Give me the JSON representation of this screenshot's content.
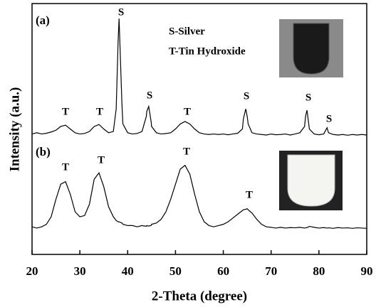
{
  "chart_data": {
    "type": "line",
    "xlabel": "2-Theta (degree)",
    "ylabel": "Intensity (a.u.)",
    "xlim": [
      20,
      90
    ],
    "xticks": [
      20,
      30,
      40,
      50,
      60,
      70,
      80,
      90
    ],
    "ylim": [
      0,
      100
    ],
    "x": [
      20,
      21,
      22,
      23,
      24,
      25,
      26,
      27,
      28,
      29,
      30,
      31,
      32,
      33,
      34,
      35,
      36,
      37,
      37.6,
      38,
      38.2,
      38.8,
      39,
      40,
      41,
      42,
      43,
      43.9,
      44,
      44.4,
      44.9,
      45,
      46,
      47,
      48,
      49,
      50,
      51,
      52,
      53,
      54,
      55,
      56,
      57,
      58,
      59,
      60,
      61,
      62,
      63,
      64,
      64.2,
      64.7,
      65,
      65.2,
      66,
      67,
      68,
      69,
      70,
      71,
      72,
      73,
      74,
      75,
      76,
      77,
      77.2,
      77.5,
      77.8,
      78,
      79,
      80,
      81,
      81.7,
      82,
      83,
      84,
      85,
      86,
      87,
      88,
      89,
      90
    ],
    "series": [
      {
        "name": "(a)",
        "color": "#000000",
        "values": [
          48,
          48.5,
          48,
          48.3,
          48.8,
          49.5,
          51,
          51.5,
          50,
          48.5,
          48,
          48.2,
          49,
          51,
          51.8,
          50,
          48.5,
          49,
          58,
          85,
          94,
          60,
          52,
          48.5,
          48,
          48.2,
          49,
          55,
          57,
          59,
          53,
          51,
          48.5,
          48,
          48.2,
          48.5,
          50,
          52,
          53,
          52,
          50,
          48.5,
          48,
          47.8,
          48,
          47.8,
          48,
          47.7,
          48,
          48.3,
          50,
          54,
          58,
          55,
          52,
          48.5,
          48,
          47.8,
          47.6,
          48,
          47.7,
          47.8,
          48,
          47.6,
          48,
          48.5,
          51,
          55,
          57.5,
          53,
          50,
          48,
          47.7,
          48,
          50.5,
          48.5,
          47.8,
          47.6,
          47.8,
          47.5,
          47.8,
          47.6,
          47.8,
          47.6
        ]
      },
      {
        "name": "(b)",
        "color": "#000000",
        "values": [
          11,
          10.5,
          11,
          12,
          15,
          22,
          28,
          29,
          24,
          17,
          15,
          15.5,
          20,
          30,
          32.5,
          27,
          19,
          15,
          13.5,
          13,
          13,
          12.5,
          12,
          11.5,
          11.5,
          11,
          11.5,
          11.2,
          11.5,
          11.3,
          11.5,
          12,
          12.5,
          14,
          17,
          22,
          28,
          34,
          35.5,
          32,
          24,
          17,
          13,
          11.5,
          11,
          11.5,
          12,
          13,
          14.5,
          16,
          17.5,
          17.8,
          18,
          18.2,
          17.8,
          16.5,
          14,
          12,
          11,
          10.8,
          10.5,
          10.8,
          10.5,
          10.7,
          10.6,
          10.8,
          10.5,
          10.6,
          10.7,
          10.9,
          11.2,
          10.8,
          10.5,
          10.7,
          10.5,
          10.6,
          10.4,
          10.7,
          10.5,
          10.6,
          10.4,
          10.6,
          10.5,
          10.4
        ]
      }
    ],
    "annotations": [
      "S-Silver",
      "T-Tin Hydroxide",
      "T",
      "T",
      "S",
      "S",
      "T",
      "S",
      "S",
      "S",
      "T",
      "T",
      "T",
      "T"
    ]
  }
}
